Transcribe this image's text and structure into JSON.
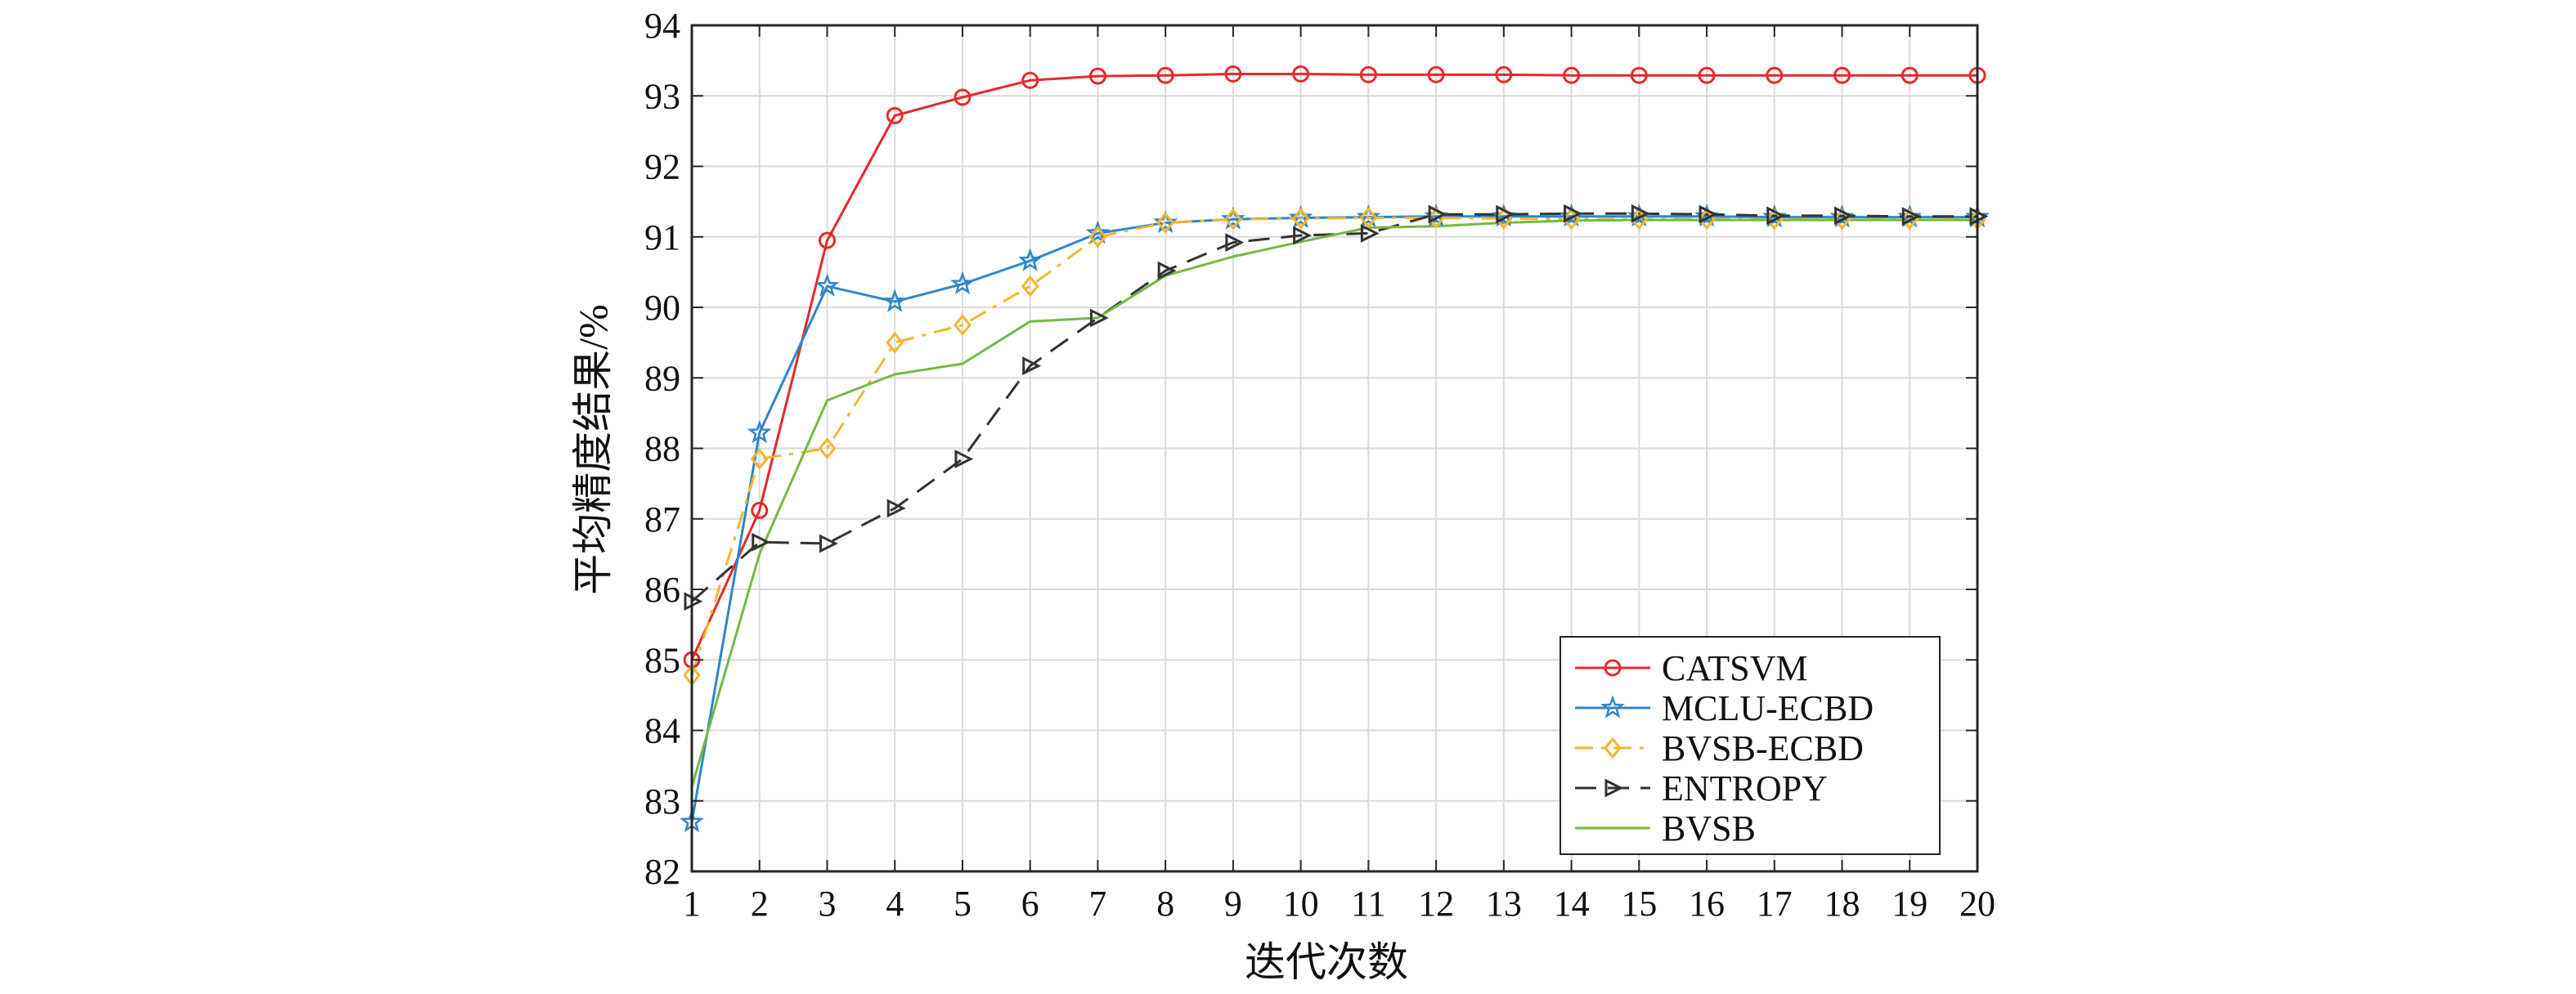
{
  "chart_data": {
    "type": "line",
    "title": "",
    "xlabel": "迭代次数",
    "ylabel": "平均精度结果/%",
    "x": [
      1,
      2,
      3,
      4,
      5,
      6,
      7,
      8,
      9,
      10,
      11,
      12,
      13,
      14,
      15,
      16,
      17,
      18,
      19,
      20
    ],
    "xlim": [
      1,
      20
    ],
    "ylim": [
      82,
      94
    ],
    "xticks": [
      "1",
      "2",
      "3",
      "4",
      "5",
      "6",
      "7",
      "8",
      "9",
      "10",
      "11",
      "12",
      "13",
      "14",
      "15",
      "16",
      "17",
      "18",
      "19",
      "20"
    ],
    "yticks": [
      "82",
      "83",
      "84",
      "85",
      "86",
      "87",
      "88",
      "89",
      "90",
      "91",
      "92",
      "93",
      "94"
    ],
    "grid": true,
    "legend_position": "bottom-right",
    "series": [
      {
        "name": "CATSVM",
        "color": "#e8282b",
        "dash": "solid",
        "marker": "circle",
        "values": [
          85.0,
          87.12,
          90.95,
          92.72,
          92.98,
          93.22,
          93.28,
          93.29,
          93.31,
          93.31,
          93.3,
          93.3,
          93.3,
          93.29,
          93.29,
          93.29,
          93.29,
          93.29,
          93.29,
          93.29
        ]
      },
      {
        "name": "MCLU-ECBD",
        "color": "#2e86c9",
        "dash": "solid",
        "marker": "star",
        "values": [
          82.7,
          88.22,
          90.3,
          90.08,
          90.33,
          90.66,
          91.05,
          91.2,
          91.25,
          91.27,
          91.28,
          91.29,
          91.29,
          91.29,
          91.29,
          91.29,
          91.28,
          91.28,
          91.28,
          91.28
        ]
      },
      {
        "name": "BVSB-ECBD",
        "color": "#f2b632",
        "dash": "dashdot",
        "marker": "diamond",
        "values": [
          84.78,
          87.85,
          88.0,
          89.5,
          89.75,
          90.3,
          91.0,
          91.2,
          91.25,
          91.26,
          91.27,
          91.27,
          91.26,
          91.25,
          91.25,
          91.25,
          91.25,
          91.25,
          91.25,
          91.25
        ]
      },
      {
        "name": "ENTROPY",
        "color": "#333333",
        "dash": "dashed",
        "marker": "triangle-right",
        "values": [
          85.83,
          86.67,
          86.65,
          87.15,
          87.85,
          89.17,
          89.85,
          90.52,
          90.92,
          91.02,
          91.05,
          91.32,
          91.32,
          91.33,
          91.33,
          91.32,
          91.3,
          91.3,
          91.29,
          91.29
        ]
      },
      {
        "name": "BVSB",
        "color": "#77b843",
        "dash": "solid",
        "marker": "none",
        "values": [
          83.2,
          86.5,
          88.68,
          89.05,
          89.2,
          89.8,
          89.85,
          90.45,
          90.72,
          90.93,
          91.13,
          91.15,
          91.2,
          91.23,
          91.24,
          91.24,
          91.24,
          91.24,
          91.24,
          91.24
        ]
      }
    ]
  }
}
